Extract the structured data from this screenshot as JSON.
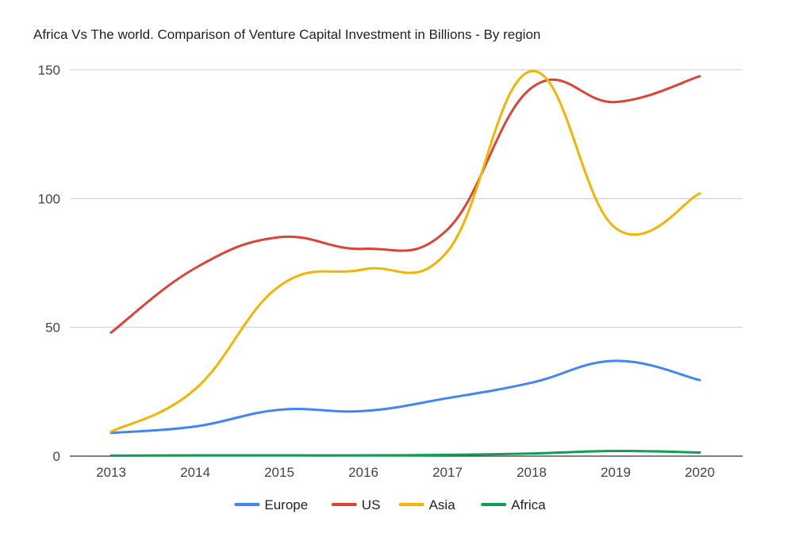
{
  "chart_data": {
    "type": "line",
    "title": "Africa Vs The world. Comparison of Venture Capital Investment in Billions - By region",
    "xlabel": "",
    "ylabel": "",
    "categories": [
      "2013",
      "2014",
      "2015",
      "2016",
      "2017",
      "2018",
      "2019",
      "2020"
    ],
    "ylim": [
      0,
      150
    ],
    "yticks": [
      "0",
      "50",
      "100",
      "150"
    ],
    "grid": true,
    "legend_position": "bottom",
    "series": [
      {
        "name": "Europe",
        "color": "#4285f4",
        "values": [
          9,
          11.5,
          18,
          17.5,
          22.5,
          28.5,
          37,
          29.5
        ]
      },
      {
        "name": "US",
        "color": "#db4437",
        "values": [
          48,
          73,
          85,
          80.5,
          88,
          143,
          137.5,
          147.5
        ]
      },
      {
        "name": "Asia",
        "color": "#f4b400",
        "values": [
          9.5,
          26,
          66,
          72.5,
          79.5,
          149.5,
          88.5,
          102
        ]
      },
      {
        "name": "Africa",
        "color": "#0f9d58",
        "values": [
          0.2,
          0.3,
          0.3,
          0.3,
          0.5,
          1,
          2,
          1.4
        ]
      }
    ]
  }
}
